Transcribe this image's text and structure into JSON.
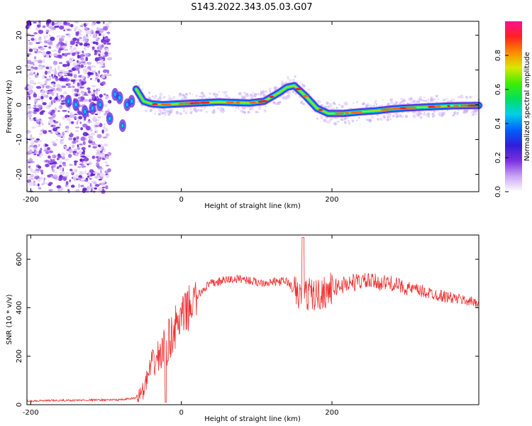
{
  "title": "S143.2022.343.05.03.G07",
  "chart_data": [
    {
      "type": "heatmap",
      "xlabel": "Height of straight line (km)",
      "ylabel": "Frequency (Hz)",
      "xlim": [
        -205,
        395
      ],
      "ylim": [
        -25,
        24
      ],
      "xticks": [
        -200,
        0,
        200
      ],
      "yticks": [
        -20,
        -10,
        0,
        10,
        20
      ],
      "colorbar": {
        "label": "Normalized spectral amplitude",
        "range": [
          0,
          1
        ],
        "ticks": [
          "0.0",
          "0.2",
          "0.4",
          "0.6",
          "0.8"
        ],
        "colors": [
          "#ffffff",
          "#c9a4f5",
          "#7b2fe0",
          "#2f1fd8",
          "#0060ff",
          "#00d0e8",
          "#00e060",
          "#40ee00",
          "#d8e800",
          "#ff8a00",
          "#ff2020",
          "#ff1090"
        ]
      },
      "noise_region_x": [
        -205,
        -95
      ],
      "ridge": {
        "x": [
          -60,
          -50,
          -40,
          -25,
          0,
          50,
          90,
          110,
          130,
          140,
          150,
          165,
          180,
          195,
          215,
          240,
          260,
          280,
          300,
          330,
          360,
          395
        ],
        "y": [
          4.5,
          1,
          0.3,
          0,
          0.3,
          0.8,
          0.5,
          1,
          3.5,
          5,
          5.5,
          2.5,
          -1,
          -2.5,
          -2.5,
          -2,
          -1.7,
          -1.2,
          -0.9,
          -0.6,
          -0.3,
          -0.2
        ]
      },
      "early_streaks": {
        "x": [
          -150,
          -140,
          -128,
          -118,
          -108,
          -95,
          -88,
          -82,
          -78,
          -72,
          -66
        ],
        "y": [
          1,
          0,
          -2,
          -1,
          0,
          -4,
          3,
          2,
          -6,
          0,
          1
        ]
      }
    },
    {
      "type": "line",
      "xlabel": "Height of straight line (km)",
      "ylabel": "SNR (10 * v/v)",
      "xlim": [
        -205,
        395
      ],
      "ylim": [
        0,
        700
      ],
      "xticks": [
        -200,
        0,
        200
      ],
      "yticks": [
        0,
        200,
        400,
        600
      ],
      "color": "#ee3030",
      "x": [
        -205,
        -150,
        -100,
        -80,
        -60,
        -50,
        -40,
        -30,
        -20,
        -10,
        0,
        10,
        20,
        30,
        40,
        60,
        80,
        100,
        120,
        140,
        150,
        160,
        170,
        180,
        200,
        220,
        240,
        260,
        280,
        300,
        330,
        360,
        395
      ],
      "y": [
        15,
        18,
        20,
        20,
        28,
        60,
        160,
        200,
        240,
        310,
        350,
        400,
        440,
        480,
        500,
        515,
        520,
        505,
        505,
        510,
        470,
        440,
        460,
        450,
        480,
        500,
        510,
        505,
        500,
        480,
        460,
        440,
        420
      ]
    }
  ]
}
